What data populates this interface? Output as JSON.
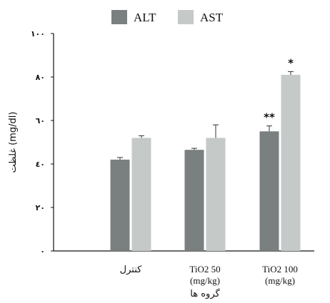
{
  "chart_data": {
    "type": "bar",
    "categories": [
      "کنترل",
      "TiO2 50\n(mg/kg)",
      "TiO2 100\n(mg/kg)"
    ],
    "series": [
      {
        "name": "ALT",
        "color": "#7a7f80",
        "values": [
          42,
          46.5,
          55
        ],
        "errors": [
          1,
          0.7,
          2.5
        ]
      },
      {
        "name": "AST",
        "color": "#c5c9c8",
        "values": [
          52,
          52,
          81
        ],
        "errors": [
          1,
          6,
          1.5
        ]
      }
    ],
    "significance": [
      {
        "category_index": 2,
        "series_index": 0,
        "label": "**"
      },
      {
        "category_index": 2,
        "series_index": 1,
        "label": "*"
      }
    ],
    "yticks": [
      "٠",
      "٢٠",
      "٤٠",
      "٦٠",
      "٨٠",
      "١٠٠"
    ],
    "ylim": [
      0,
      100
    ],
    "ylabel": "غلظت (mg/dl)",
    "xlabel": "گروه ها",
    "legend_position": "top-center",
    "grid": false
  }
}
